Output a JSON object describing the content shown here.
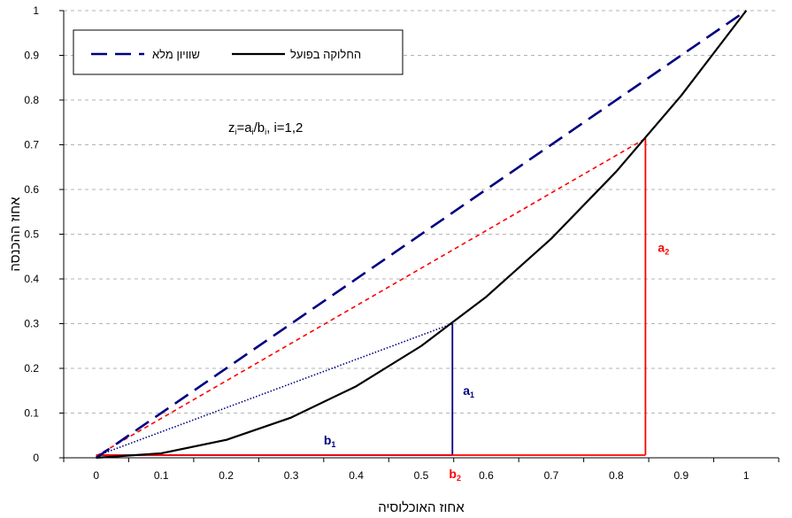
{
  "chart_data": {
    "type": "line",
    "xlabel": "אחוז האוכלוסיה",
    "ylabel": "אחוז ההכנסה",
    "xlim": [
      -0.05,
      1.05
    ],
    "ylim": [
      0,
      1
    ],
    "xticks": [
      "0",
      "0.1",
      "0.2",
      "0.3",
      "0.4",
      "0.5",
      "0.6",
      "0.7",
      "0.8",
      "0.9",
      "1"
    ],
    "yticks": [
      "0",
      "0.1",
      "0.2",
      "0.3",
      "0.4",
      "0.5",
      "0.6",
      "0.7",
      "0.8",
      "0.9",
      "1"
    ],
    "grid": "horizontal dashed",
    "legend_position": "top-left",
    "series": [
      {
        "name": "שוויון מלא",
        "style": "dashed",
        "color": "#000080",
        "x": [
          0,
          1
        ],
        "y": [
          0,
          1
        ]
      },
      {
        "name": "החלוקה בפועל",
        "style": "solid",
        "color": "#000000",
        "x": [
          0,
          0.1,
          0.2,
          0.3,
          0.4,
          0.5,
          0.6,
          0.7,
          0.8,
          0.9,
          1
        ],
        "y": [
          0,
          0.01,
          0.04,
          0.09,
          0.16,
          0.25,
          0.36,
          0.49,
          0.64,
          0.81,
          1
        ]
      }
    ],
    "constructions": [
      {
        "id": "1",
        "color": "#000080",
        "x": 0.548,
        "y": 0.3,
        "ray_style": "dotted",
        "label_a": "a",
        "label_a_sub": "1",
        "label_b": "b",
        "label_b_sub": "1"
      },
      {
        "id": "2",
        "color": "#ff0000",
        "x": 0.845,
        "y": 0.714,
        "ray_style": "dashed",
        "label_a": "a",
        "label_a_sub": "2",
        "label_b": "b",
        "label_b_sub": "2"
      }
    ],
    "annotation_formula": {
      "parts": [
        "z",
        "i",
        "=a",
        "i",
        "/b",
        "i",
        ", i=1,2"
      ]
    }
  }
}
